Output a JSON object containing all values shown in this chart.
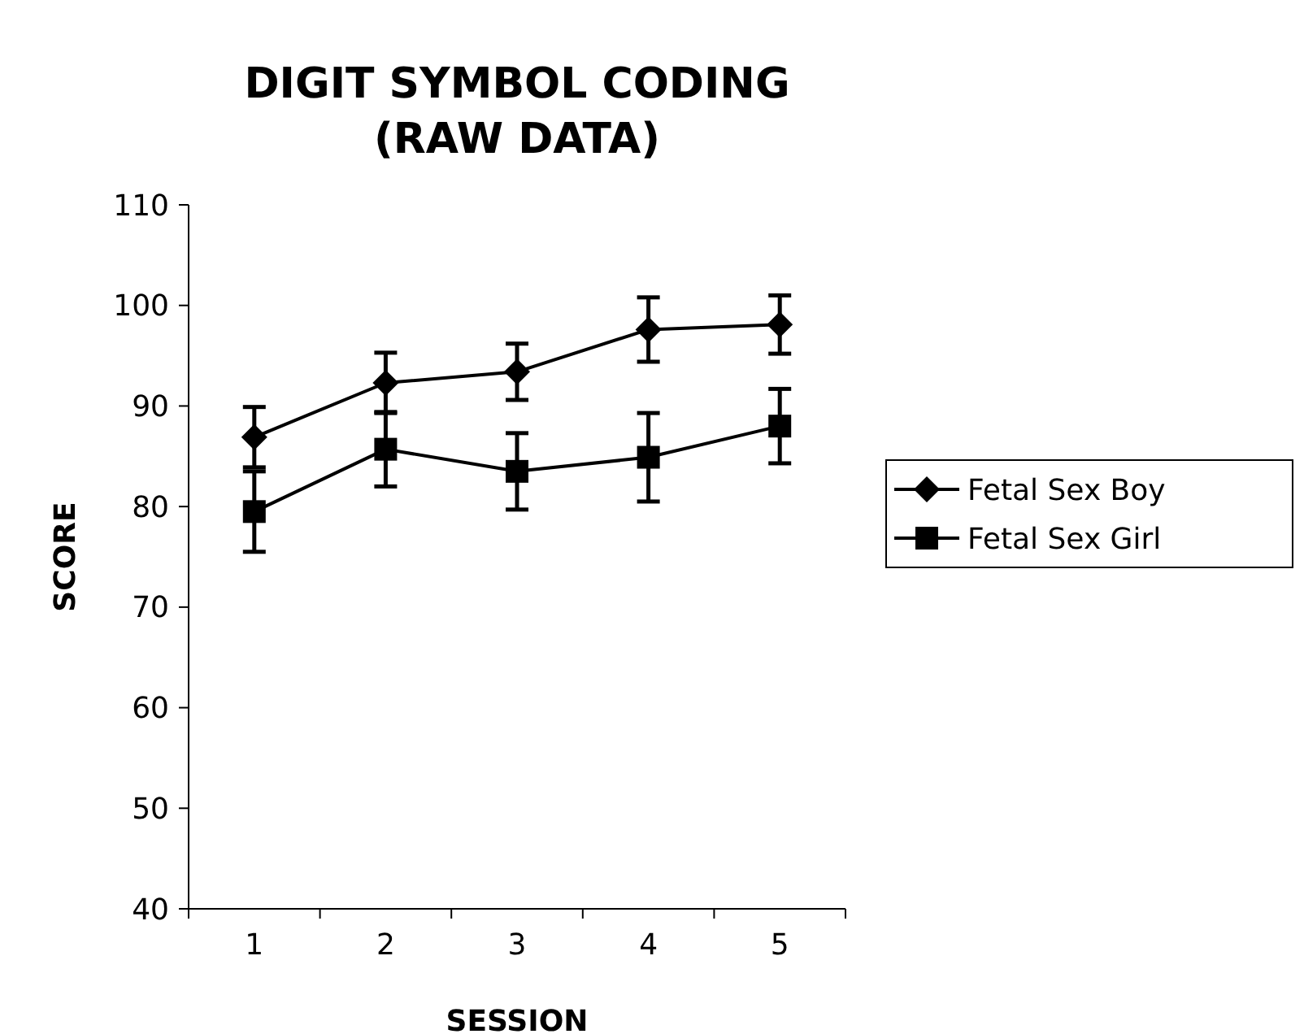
{
  "chart_data": {
    "type": "line",
    "title": "DIGIT SYMBOL CODING\n(RAW DATA)",
    "xlabel": "SESSION",
    "ylabel": "SCORE",
    "categories": [
      "1",
      "2",
      "3",
      "4",
      "5"
    ],
    "ylim": [
      40,
      110
    ],
    "yticks": [
      40,
      50,
      60,
      70,
      80,
      90,
      100,
      110
    ],
    "grid": false,
    "legend": "right",
    "line_style": "solid",
    "series": [
      {
        "name": "Fetal Sex Boy",
        "color": "#000000",
        "marker": "diamond",
        "values": [
          86.9,
          92.3,
          93.4,
          97.6,
          98.1
        ],
        "errors": [
          3,
          3,
          2.8,
          3.2,
          2.9
        ]
      },
      {
        "name": "Fetal Sex Girl",
        "color": "#000000",
        "marker": "square",
        "values": [
          79.5,
          85.7,
          83.5,
          84.9,
          88
        ],
        "errors": [
          4,
          3.7,
          3.8,
          4.4,
          3.7
        ]
      }
    ]
  }
}
